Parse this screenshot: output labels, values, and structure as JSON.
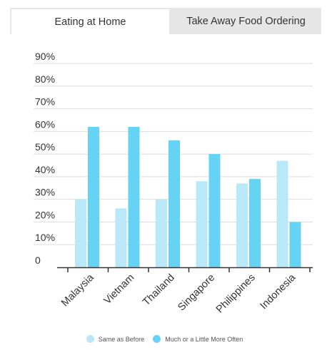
{
  "tabs": {
    "eating_at_home": "Eating at Home",
    "take_away": "Take Away Food Ordering",
    "active": "eating_at_home"
  },
  "colors": {
    "same_as_before": "#b9e8f8",
    "more_often": "#66d3f5",
    "gridline": "#dddddd",
    "axis": "#333333"
  },
  "chart_data": {
    "type": "bar",
    "categories": [
      "Malaysia",
      "Vietnam",
      "Thailand",
      "Singapore",
      "Philippines",
      "Indonesia"
    ],
    "series": [
      {
        "name": "Same as Before",
        "values": [
          30,
          26,
          30,
          38,
          37,
          47
        ]
      },
      {
        "name": "Much or a Little More Often",
        "values": [
          62,
          62,
          56,
          50,
          39,
          20
        ]
      }
    ],
    "y_tick_labels": [
      "0",
      "10%",
      "20%",
      "30%",
      "40%",
      "50%",
      "60%",
      "70%",
      "80%",
      "90%"
    ],
    "ylim": [
      0,
      90
    ],
    "grid": true,
    "legend_position": "bottom-center"
  }
}
